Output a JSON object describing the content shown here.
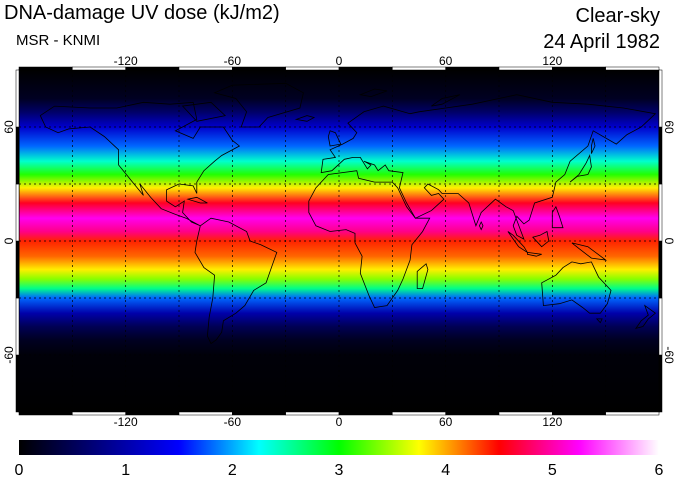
{
  "header": {
    "title": "DNA-damage UV dose (kJ/m2)",
    "source": "MSR - KNMI",
    "condition": "Clear-sky",
    "date": "24 April 1982"
  },
  "map": {
    "longitude_ticks": [
      "-120",
      "-60",
      "0",
      "60",
      "120"
    ],
    "latitude_ticks": [
      "60",
      "0",
      "-60"
    ],
    "longitude_values": [
      -120,
      -60,
      0,
      60,
      120
    ],
    "latitude_values": [
      60,
      0,
      -60
    ],
    "lon_range": [
      -180,
      180
    ],
    "lat_range": [
      -90,
      90
    ],
    "gridlines": "dashed",
    "gridline_lons": [
      -150,
      -120,
      -90,
      -60,
      -30,
      0,
      30,
      60,
      90,
      120,
      150
    ],
    "gridline_lats": [
      60,
      30,
      0,
      -30,
      -60
    ],
    "field_bands": [
      {
        "lat": 90,
        "value": 0.0
      },
      {
        "lat": 75,
        "value": 0.2
      },
      {
        "lat": 68,
        "value": 0.6
      },
      {
        "lat": 60,
        "value": 1.2
      },
      {
        "lat": 50,
        "value": 1.8
      },
      {
        "lat": 42,
        "value": 2.4
      },
      {
        "lat": 35,
        "value": 3.1
      },
      {
        "lat": 28,
        "value": 3.8
      },
      {
        "lat": 20,
        "value": 4.6
      },
      {
        "lat": 12,
        "value": 5.2
      },
      {
        "lat": 5,
        "value": 4.9
      },
      {
        "lat": 0,
        "value": 4.4
      },
      {
        "lat": -8,
        "value": 4.2
      },
      {
        "lat": -15,
        "value": 3.8
      },
      {
        "lat": -20,
        "value": 3.4
      },
      {
        "lat": -25,
        "value": 2.6
      },
      {
        "lat": -30,
        "value": 1.8
      },
      {
        "lat": -38,
        "value": 1.0
      },
      {
        "lat": -45,
        "value": 0.5
      },
      {
        "lat": -52,
        "value": 0.2
      },
      {
        "lat": -60,
        "value": 0.05
      },
      {
        "lat": -90,
        "value": 0.0
      }
    ]
  },
  "colorbar": {
    "labels": [
      "0",
      "1",
      "2",
      "3",
      "4",
      "5",
      "6"
    ],
    "min": 0,
    "max": 6,
    "stops": [
      "#000000",
      "#000080",
      "#0000ff",
      "#00ffff",
      "#00ff00",
      "#ffff00",
      "#ff0000",
      "#ff00ff",
      "#ffffff"
    ]
  },
  "colors": {
    "land_outline": "#000000",
    "subtitle": "#0000ff",
    "frame": "#000000"
  }
}
